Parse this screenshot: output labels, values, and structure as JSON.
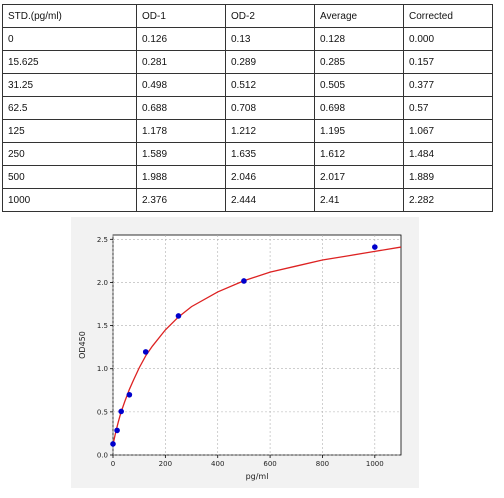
{
  "table": {
    "headers": [
      "STD.(pg/ml)",
      "OD-1",
      "OD-2",
      "Average",
      "Corrected"
    ],
    "rows": [
      [
        "0",
        "0.126",
        "0.13",
        "0.128",
        "0.000"
      ],
      [
        "15.625",
        "0.281",
        "0.289",
        "0.285",
        "0.157"
      ],
      [
        "31.25",
        "0.498",
        "0.512",
        "0.505",
        "0.377"
      ],
      [
        "62.5",
        "0.688",
        "0.708",
        "0.698",
        "0.57"
      ],
      [
        "125",
        "1.178",
        "1.212",
        "1.195",
        "1.067"
      ],
      [
        "250",
        "1.589",
        "1.635",
        "1.612",
        "1.484"
      ],
      [
        "500",
        "1.988",
        "2.046",
        "2.017",
        "1.889"
      ],
      [
        "1000",
        "2.376",
        "2.444",
        "2.41",
        "2.282"
      ]
    ]
  },
  "chart_data": {
    "type": "scatter",
    "xlabel": "pg/ml",
    "ylabel": "OD450",
    "xlim": [
      0,
      1100
    ],
    "ylim": [
      0,
      2.55
    ],
    "xticks": [
      0,
      200,
      400,
      600,
      800,
      1000
    ],
    "yticks": [
      0.0,
      0.5,
      1.0,
      1.5,
      2.0,
      2.5
    ],
    "xtick_labels": [
      "0",
      "200",
      "400",
      "600",
      "800",
      "1000"
    ],
    "ytick_labels": [
      "0.0",
      "0.5",
      "1.0",
      "1.5",
      "2.0",
      "2.5"
    ],
    "grid": true,
    "series": [
      {
        "kind": "points",
        "color": "#0000cc",
        "x": [
          0,
          15.625,
          31.25,
          62.5,
          125,
          250,
          500,
          1000
        ],
        "y": [
          0.128,
          0.285,
          0.505,
          0.698,
          1.195,
          1.612,
          2.017,
          2.41
        ]
      },
      {
        "kind": "fit-curve",
        "color": "#dd2222",
        "x": [
          0,
          10,
          20,
          30,
          45,
          62.5,
          80,
          100,
          125,
          150,
          200,
          250,
          300,
          400,
          500,
          600,
          700,
          800,
          900,
          1000,
          1100
        ],
        "y": [
          0.12,
          0.26,
          0.38,
          0.49,
          0.62,
          0.76,
          0.88,
          1.01,
          1.15,
          1.26,
          1.45,
          1.6,
          1.72,
          1.89,
          2.02,
          2.12,
          2.19,
          2.26,
          2.31,
          2.36,
          2.41
        ]
      }
    ]
  }
}
